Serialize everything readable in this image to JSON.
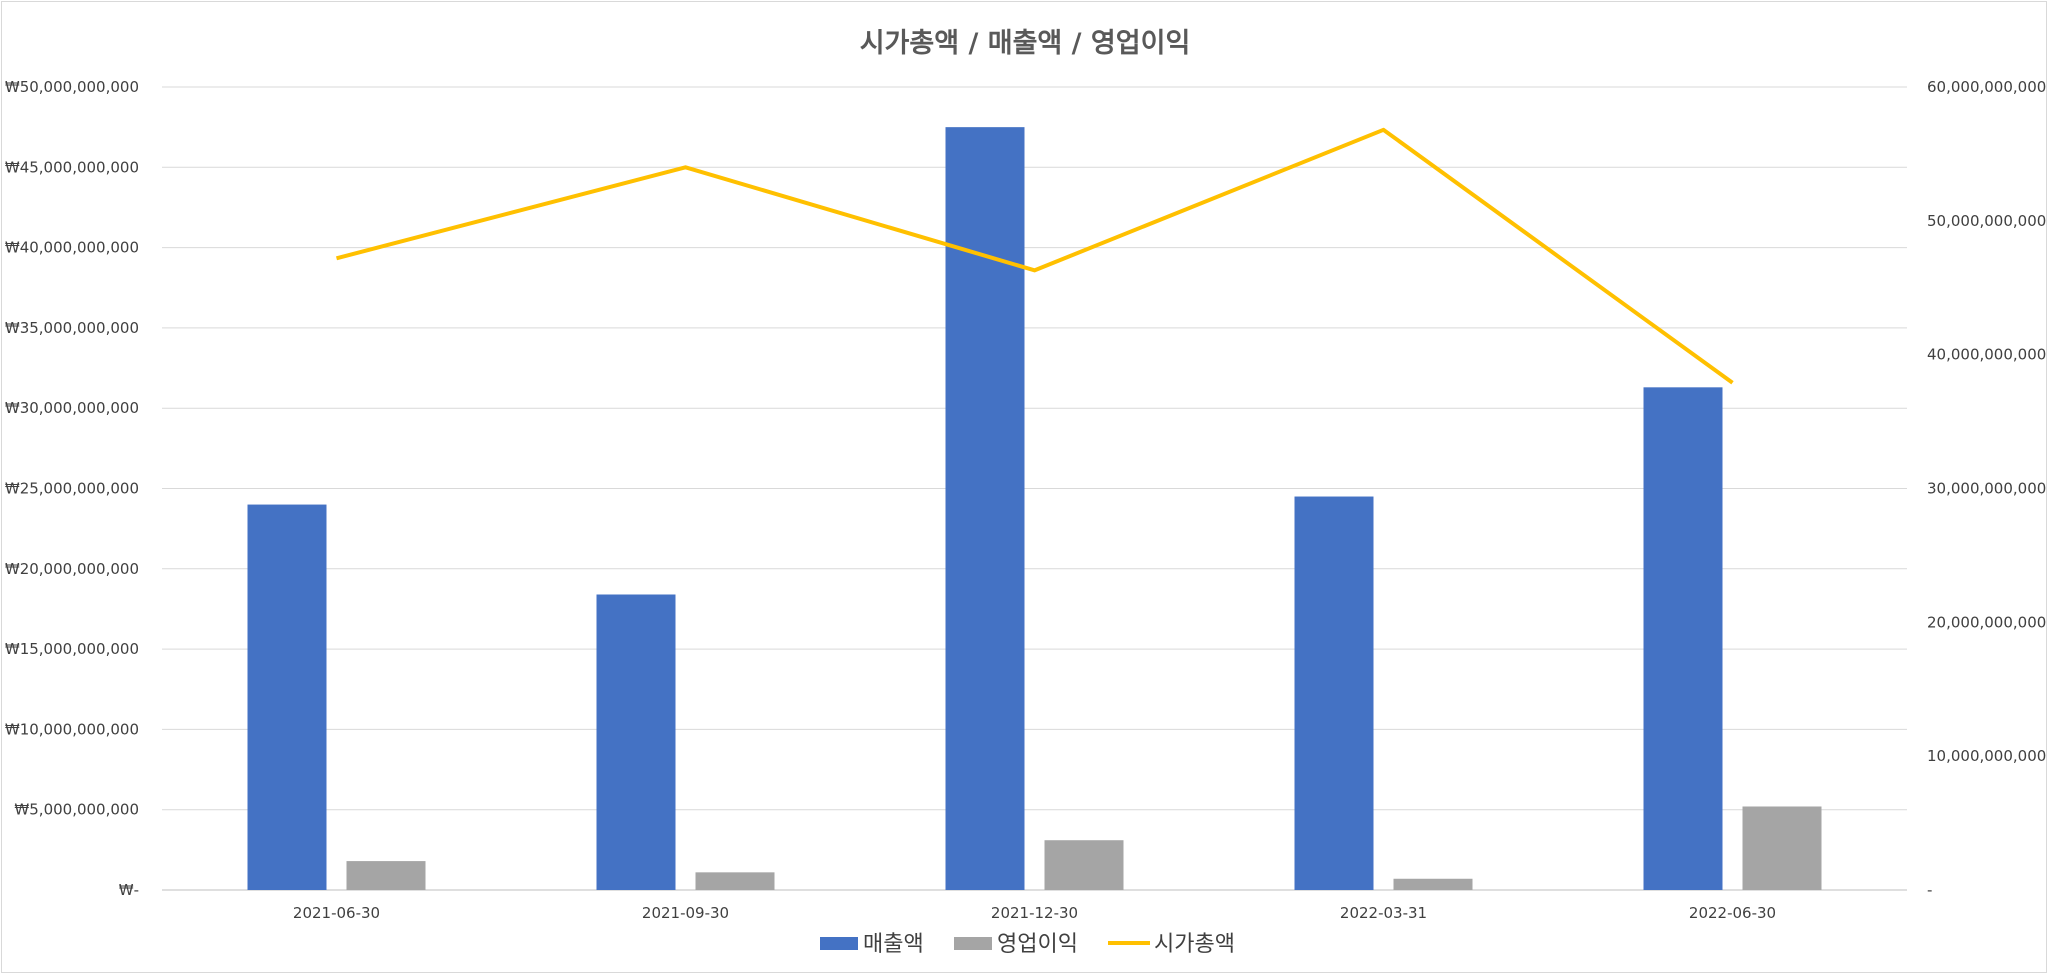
{
  "chart_data": {
    "type": "bar",
    "title": "시가총액 / 매출액 / 영업이익",
    "categories": [
      "2021-06-30",
      "2021-09-30",
      "2021-12-30",
      "2022-03-31",
      "2022-06-30"
    ],
    "series": [
      {
        "name": "매출액",
        "type": "bar",
        "axis": "left",
        "color": "#4472C4",
        "values": [
          24000000000,
          18400000000,
          47500000000,
          24500000000,
          31300000000
        ]
      },
      {
        "name": "영업이익",
        "type": "bar",
        "axis": "left",
        "color": "#A5A5A5",
        "values": [
          1800000000,
          1100000000,
          3100000000,
          700000000,
          5200000000
        ]
      },
      {
        "name": "시가총액",
        "type": "line",
        "axis": "right",
        "color": "#FFC000",
        "values": [
          47200000000,
          54000000000,
          46300000000,
          56800000000,
          37900000000
        ]
      }
    ],
    "y_left": {
      "ylim": [
        0,
        50000000000
      ],
      "ticks": [
        0,
        5000000000,
        10000000000,
        15000000000,
        20000000000,
        25000000000,
        30000000000,
        35000000000,
        40000000000,
        45000000000,
        50000000000
      ],
      "tick_labels": [
        "₩-",
        "₩5,000,000,000",
        "₩10,000,000,000",
        "₩15,000,000,000",
        "₩20,000,000,000",
        "₩25,000,000,000",
        "₩30,000,000,000",
        "₩35,000,000,000",
        "₩40,000,000,000",
        "₩45,000,000,000",
        "₩50,000,000,000"
      ]
    },
    "y_right": {
      "ylim": [
        0,
        60000000000
      ],
      "ticks": [
        0,
        10000000000,
        20000000000,
        30000000000,
        40000000000,
        50000000000,
        60000000000
      ],
      "tick_labels": [
        "-",
        "10,000,000,000",
        "20,000,000,000",
        "30,000,000,000",
        "40,000,000,000",
        "50,000,000,000",
        "60,000,000,000"
      ]
    },
    "grid": true,
    "legend": {
      "position": "bottom",
      "entries": [
        "매출액",
        "영업이익",
        "시가총액"
      ]
    }
  }
}
